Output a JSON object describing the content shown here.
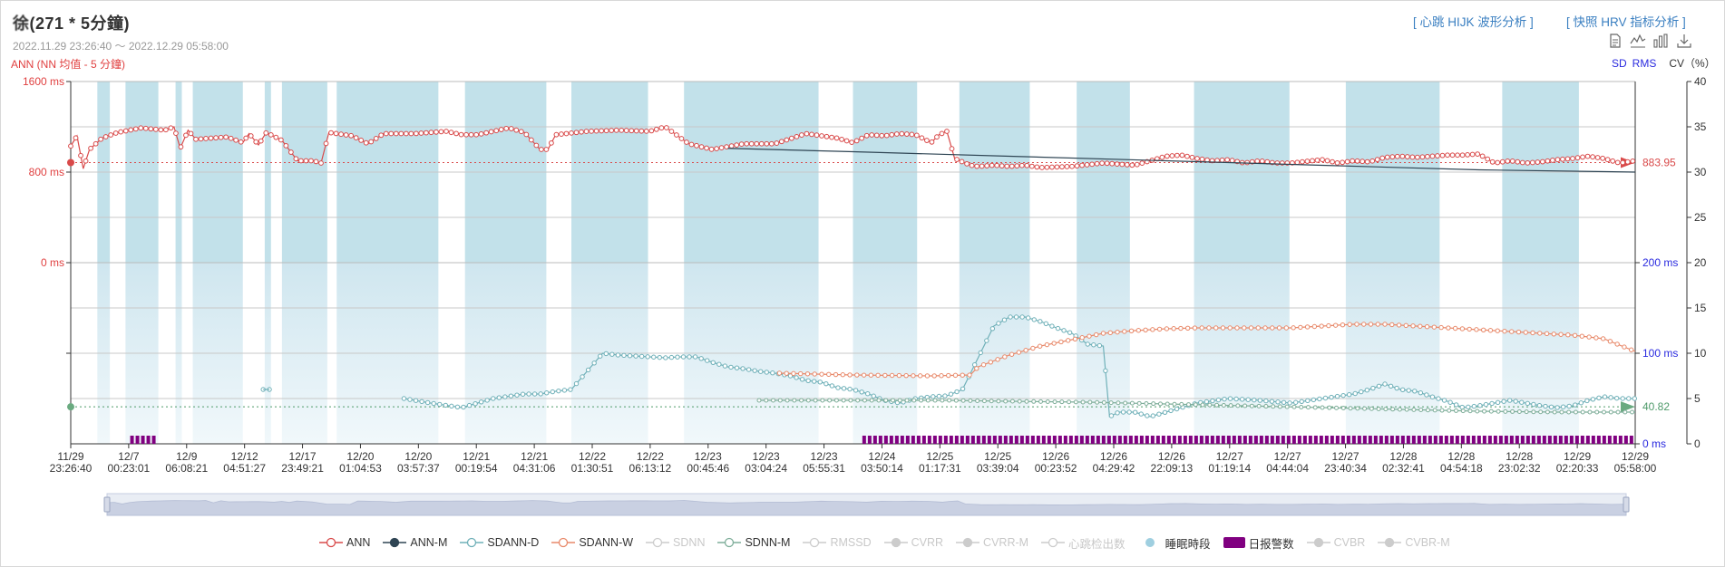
{
  "header": {
    "name": "徐",
    "title_suffix": "(271 * 5分鐘)",
    "date_range": "2022.11.29 23:26:40 ～ 2022.12.29 05:58:00",
    "ann_label": "ANN (NN 均值 - 5 分鐘)",
    "link_hijk": "[ 心跳 HIJK 波形分析 ]",
    "link_hrv": "[ 快照 HRV 指标分析 ]",
    "axis_sd": "SD",
    "axis_rms": "RMS",
    "axis_cv": "CV（%）"
  },
  "toolbar": {
    "icons": [
      "data-view-icon",
      "line-chart-icon",
      "bar-chart-icon",
      "download-icon"
    ]
  },
  "colors": {
    "ann": "#d94a4a",
    "ann_m": "#2f4554",
    "sdann_d": "#6fb0b8",
    "sdann_w": "#e8896a",
    "sdnn_m": "#7fae9a",
    "sleep": "#9fcfe0",
    "alarm": "#800080",
    "muted": "#cccccc"
  },
  "chart_data": {
    "type": "line",
    "title": "ANN (NN 均值 - 5 分鐘)",
    "x_ticks": [
      [
        "11/29",
        "23:26:40"
      ],
      [
        "12/7",
        "00:23:01"
      ],
      [
        "12/9",
        "06:08:21"
      ],
      [
        "12/12",
        "04:51:27"
      ],
      [
        "12/17",
        "23:49:21"
      ],
      [
        "12/20",
        "01:04:53"
      ],
      [
        "12/20",
        "03:57:37"
      ],
      [
        "12/21",
        "00:19:54"
      ],
      [
        "12/21",
        "04:31:06"
      ],
      [
        "12/22",
        "01:30:51"
      ],
      [
        "12/22",
        "06:13:12"
      ],
      [
        "12/23",
        "00:45:46"
      ],
      [
        "12/23",
        "03:04:24"
      ],
      [
        "12/23",
        "05:55:31"
      ],
      [
        "12/24",
        "03:50:14"
      ],
      [
        "12/25",
        "01:17:31"
      ],
      [
        "12/25",
        "03:39:04"
      ],
      [
        "12/26",
        "00:23:52"
      ],
      [
        "12/26",
        "04:29:42"
      ],
      [
        "12/26",
        "22:09:13"
      ],
      [
        "12/27",
        "01:19:14"
      ],
      [
        "12/27",
        "04:44:04"
      ],
      [
        "12/27",
        "23:40:34"
      ],
      [
        "12/28",
        "02:32:41"
      ],
      [
        "12/28",
        "04:54:18"
      ],
      [
        "12/28",
        "23:02:32"
      ],
      [
        "12/29",
        "02:20:33"
      ],
      [
        "12/29",
        "05:58:00"
      ]
    ],
    "upper_left_axis": {
      "ticks": [
        "0 ms",
        "800 ms",
        "1600 ms"
      ],
      "range": [
        0,
        1600
      ]
    },
    "lower_right_axis": {
      "ticks": [
        "0 ms",
        "100 ms",
        "200 ms"
      ],
      "range": [
        0,
        200
      ]
    },
    "cv_axis": {
      "ticks": [
        "0",
        "5",
        "10",
        "15",
        "20",
        "25",
        "30",
        "35",
        "40"
      ],
      "range": [
        0,
        40
      ]
    },
    "ann_mean": 883.95,
    "ann_mean_label": "883.95",
    "sd_mean": 40.82,
    "sd_mean_label": "40.82",
    "sleep_periods": [
      [
        0.017,
        0.025
      ],
      [
        0.035,
        0.056
      ],
      [
        0.067,
        0.071
      ],
      [
        0.078,
        0.11
      ],
      [
        0.124,
        0.128
      ],
      [
        0.135,
        0.164
      ],
      [
        0.17,
        0.235
      ],
      [
        0.252,
        0.304
      ],
      [
        0.32,
        0.369
      ],
      [
        0.392,
        0.478
      ],
      [
        0.5,
        0.541
      ],
      [
        0.568,
        0.613
      ],
      [
        0.643,
        0.677
      ],
      [
        0.718,
        0.779
      ],
      [
        0.815,
        0.875
      ],
      [
        0.915,
        0.964
      ]
    ],
    "alarm_periods": [
      [
        0.038,
        0.056
      ],
      [
        0.506,
        1.0
      ]
    ],
    "series": [
      {
        "name": "ANN",
        "axis": "ms",
        "points": [
          [
            0,
            1030
          ],
          [
            0.004,
            1120
          ],
          [
            0.008,
            830
          ],
          [
            0.012,
            1000
          ],
          [
            0.02,
            1100
          ],
          [
            0.03,
            1150
          ],
          [
            0.045,
            1190
          ],
          [
            0.06,
            1170
          ],
          [
            0.066,
            1200
          ],
          [
            0.07,
            1010
          ],
          [
            0.075,
            1170
          ],
          [
            0.08,
            1090
          ],
          [
            0.1,
            1110
          ],
          [
            0.11,
            1060
          ],
          [
            0.114,
            1140
          ],
          [
            0.12,
            1040
          ],
          [
            0.125,
            1150
          ],
          [
            0.135,
            1080
          ],
          [
            0.145,
            900
          ],
          [
            0.155,
            900
          ],
          [
            0.16,
            880
          ],
          [
            0.165,
            1150
          ],
          [
            0.18,
            1120
          ],
          [
            0.19,
            1050
          ],
          [
            0.2,
            1140
          ],
          [
            0.22,
            1140
          ],
          [
            0.24,
            1160
          ],
          [
            0.25,
            1130
          ],
          [
            0.26,
            1130
          ],
          [
            0.28,
            1190
          ],
          [
            0.29,
            1150
          ],
          [
            0.3,
            1000
          ],
          [
            0.305,
            1000
          ],
          [
            0.31,
            1130
          ],
          [
            0.33,
            1160
          ],
          [
            0.35,
            1170
          ],
          [
            0.37,
            1160
          ],
          [
            0.38,
            1200
          ],
          [
            0.395,
            1050
          ],
          [
            0.41,
            1000
          ],
          [
            0.43,
            1050
          ],
          [
            0.45,
            1050
          ],
          [
            0.47,
            1140
          ],
          [
            0.49,
            1100
          ],
          [
            0.5,
            1060
          ],
          [
            0.51,
            1130
          ],
          [
            0.52,
            1120
          ],
          [
            0.53,
            1140
          ],
          [
            0.54,
            1130
          ],
          [
            0.55,
            1060
          ],
          [
            0.555,
            1130
          ],
          [
            0.56,
            1160
          ],
          [
            0.565,
            920
          ],
          [
            0.57,
            890
          ],
          [
            0.575,
            860
          ],
          [
            0.58,
            850
          ],
          [
            0.59,
            860
          ],
          [
            0.6,
            850
          ],
          [
            0.61,
            860
          ],
          [
            0.62,
            840
          ],
          [
            0.64,
            850
          ],
          [
            0.66,
            880
          ],
          [
            0.68,
            860
          ],
          [
            0.7,
            940
          ],
          [
            0.71,
            950
          ],
          [
            0.72,
            920
          ],
          [
            0.73,
            900
          ],
          [
            0.74,
            910
          ],
          [
            0.75,
            880
          ],
          [
            0.76,
            900
          ],
          [
            0.77,
            880
          ],
          [
            0.78,
            880
          ],
          [
            0.8,
            910
          ],
          [
            0.81,
            880
          ],
          [
            0.82,
            900
          ],
          [
            0.83,
            890
          ],
          [
            0.84,
            930
          ],
          [
            0.85,
            940
          ],
          [
            0.86,
            930
          ],
          [
            0.87,
            940
          ],
          [
            0.88,
            950
          ],
          [
            0.89,
            950
          ],
          [
            0.9,
            960
          ],
          [
            0.91,
            880
          ],
          [
            0.92,
            900
          ],
          [
            0.93,
            880
          ],
          [
            0.94,
            890
          ],
          [
            0.95,
            910
          ],
          [
            0.96,
            920
          ],
          [
            0.97,
            940
          ],
          [
            0.98,
            920
          ],
          [
            0.99,
            880
          ],
          [
            1,
            900
          ]
        ]
      },
      {
        "name": "ANN-M",
        "axis": "ms",
        "points": [
          [
            0.42,
            1010
          ],
          [
            0.5,
            980
          ],
          [
            0.6,
            940
          ],
          [
            0.7,
            900
          ],
          [
            0.8,
            860
          ],
          [
            0.9,
            820
          ],
          [
            1.0,
            800
          ]
        ]
      },
      {
        "name": "SDANN-D",
        "axis": "ms",
        "points": [
          [
            0.123,
            60
          ],
          [
            0.127,
            60
          ],
          [
            0.213,
            50
          ],
          [
            0.23,
            45
          ],
          [
            0.25,
            40
          ],
          [
            0.27,
            50
          ],
          [
            0.29,
            55
          ],
          [
            0.3,
            55
          ],
          [
            0.31,
            58
          ],
          [
            0.32,
            60
          ],
          [
            0.33,
            80
          ],
          [
            0.34,
            100
          ],
          [
            0.35,
            98
          ],
          [
            0.37,
            96
          ],
          [
            0.38,
            95
          ],
          [
            0.39,
            96
          ],
          [
            0.4,
            96
          ],
          [
            0.41,
            90
          ],
          [
            0.42,
            85
          ],
          [
            0.43,
            83
          ],
          [
            0.44,
            80
          ],
          [
            0.45,
            78
          ],
          [
            0.46,
            75
          ],
          [
            0.47,
            70
          ],
          [
            0.48,
            68
          ],
          [
            0.49,
            62
          ],
          [
            0.5,
            60
          ],
          [
            0.51,
            55
          ],
          [
            0.52,
            48
          ],
          [
            0.53,
            45
          ],
          [
            0.54,
            50
          ],
          [
            0.55,
            52
          ],
          [
            0.56,
            53
          ],
          [
            0.57,
            60
          ],
          [
            0.58,
            95
          ],
          [
            0.59,
            130
          ],
          [
            0.6,
            140
          ],
          [
            0.61,
            140
          ],
          [
            0.62,
            135
          ],
          [
            0.63,
            128
          ],
          [
            0.64,
            122
          ],
          [
            0.65,
            110
          ],
          [
            0.66,
            108
          ],
          [
            0.664,
            30
          ],
          [
            0.67,
            35
          ],
          [
            0.68,
            35
          ],
          [
            0.69,
            30
          ],
          [
            0.7,
            35
          ],
          [
            0.72,
            45
          ],
          [
            0.74,
            50
          ],
          [
            0.76,
            48
          ],
          [
            0.78,
            45
          ],
          [
            0.8,
            50
          ],
          [
            0.82,
            55
          ],
          [
            0.83,
            60
          ],
          [
            0.84,
            66
          ],
          [
            0.85,
            60
          ],
          [
            0.86,
            58
          ],
          [
            0.87,
            52
          ],
          [
            0.88,
            47
          ],
          [
            0.89,
            40
          ],
          [
            0.9,
            42
          ],
          [
            0.91,
            45
          ],
          [
            0.92,
            48
          ],
          [
            0.93,
            45
          ],
          [
            0.94,
            42
          ],
          [
            0.95,
            40
          ],
          [
            0.96,
            42
          ],
          [
            0.97,
            48
          ],
          [
            0.98,
            52
          ],
          [
            0.99,
            50
          ],
          [
            1,
            50
          ]
        ]
      },
      {
        "name": "SDANN-W",
        "axis": "ms",
        "points": [
          [
            0.453,
            78
          ],
          [
            0.5,
            76
          ],
          [
            0.55,
            75
          ],
          [
            0.575,
            76
          ],
          [
            0.58,
            85
          ],
          [
            0.6,
            98
          ],
          [
            0.62,
            108
          ],
          [
            0.64,
            115
          ],
          [
            0.66,
            122
          ],
          [
            0.68,
            125
          ],
          [
            0.7,
            127
          ],
          [
            0.72,
            128
          ],
          [
            0.74,
            128
          ],
          [
            0.76,
            128
          ],
          [
            0.78,
            128
          ],
          [
            0.8,
            130
          ],
          [
            0.82,
            132
          ],
          [
            0.84,
            132
          ],
          [
            0.86,
            130
          ],
          [
            0.88,
            128
          ],
          [
            0.9,
            126
          ],
          [
            0.92,
            124
          ],
          [
            0.94,
            122
          ],
          [
            0.96,
            120
          ],
          [
            0.98,
            116
          ],
          [
            1,
            102
          ]
        ]
      },
      {
        "name": "SDNN-M",
        "axis": "ms",
        "points": [
          [
            0.44,
            48
          ],
          [
            0.5,
            48
          ],
          [
            0.56,
            48
          ],
          [
            0.6,
            47
          ],
          [
            0.65,
            46
          ],
          [
            0.7,
            44
          ],
          [
            0.75,
            42
          ],
          [
            0.8,
            40
          ],
          [
            0.85,
            38
          ],
          [
            0.9,
            36
          ],
          [
            0.95,
            35
          ],
          [
            1,
            35
          ]
        ]
      }
    ],
    "legend": [
      {
        "label": "ANN",
        "color_key": "ann",
        "shape": "line",
        "active": true
      },
      {
        "label": "ANN-M",
        "color_key": "ann_m",
        "shape": "line-dot",
        "active": true
      },
      {
        "label": "SDANN-D",
        "color_key": "sdann_d",
        "shape": "line",
        "active": true
      },
      {
        "label": "SDANN-W",
        "color_key": "sdann_w",
        "shape": "line",
        "active": true
      },
      {
        "label": "SDNN",
        "color_key": "muted",
        "shape": "line",
        "active": false
      },
      {
        "label": "SDNN-M",
        "color_key": "sdnn_m",
        "shape": "line",
        "active": true
      },
      {
        "label": "RMSSD",
        "color_key": "muted",
        "shape": "line",
        "active": false
      },
      {
        "label": "CVRR",
        "color_key": "muted",
        "shape": "line-dot",
        "active": false
      },
      {
        "label": "CVRR-M",
        "color_key": "muted",
        "shape": "line-dot",
        "active": false
      },
      {
        "label": "心跳检出数",
        "color_key": "muted",
        "shape": "line",
        "active": false
      },
      {
        "label": "睡眠時段",
        "color_key": "sleep",
        "shape": "dot",
        "active": true
      },
      {
        "label": "日报警数",
        "color_key": "alarm",
        "shape": "rect",
        "active": true
      },
      {
        "label": "CVBR",
        "color_key": "muted",
        "shape": "line-dot",
        "active": false
      },
      {
        "label": "CVBR-M",
        "color_key": "muted",
        "shape": "line-dot",
        "active": false
      }
    ]
  }
}
